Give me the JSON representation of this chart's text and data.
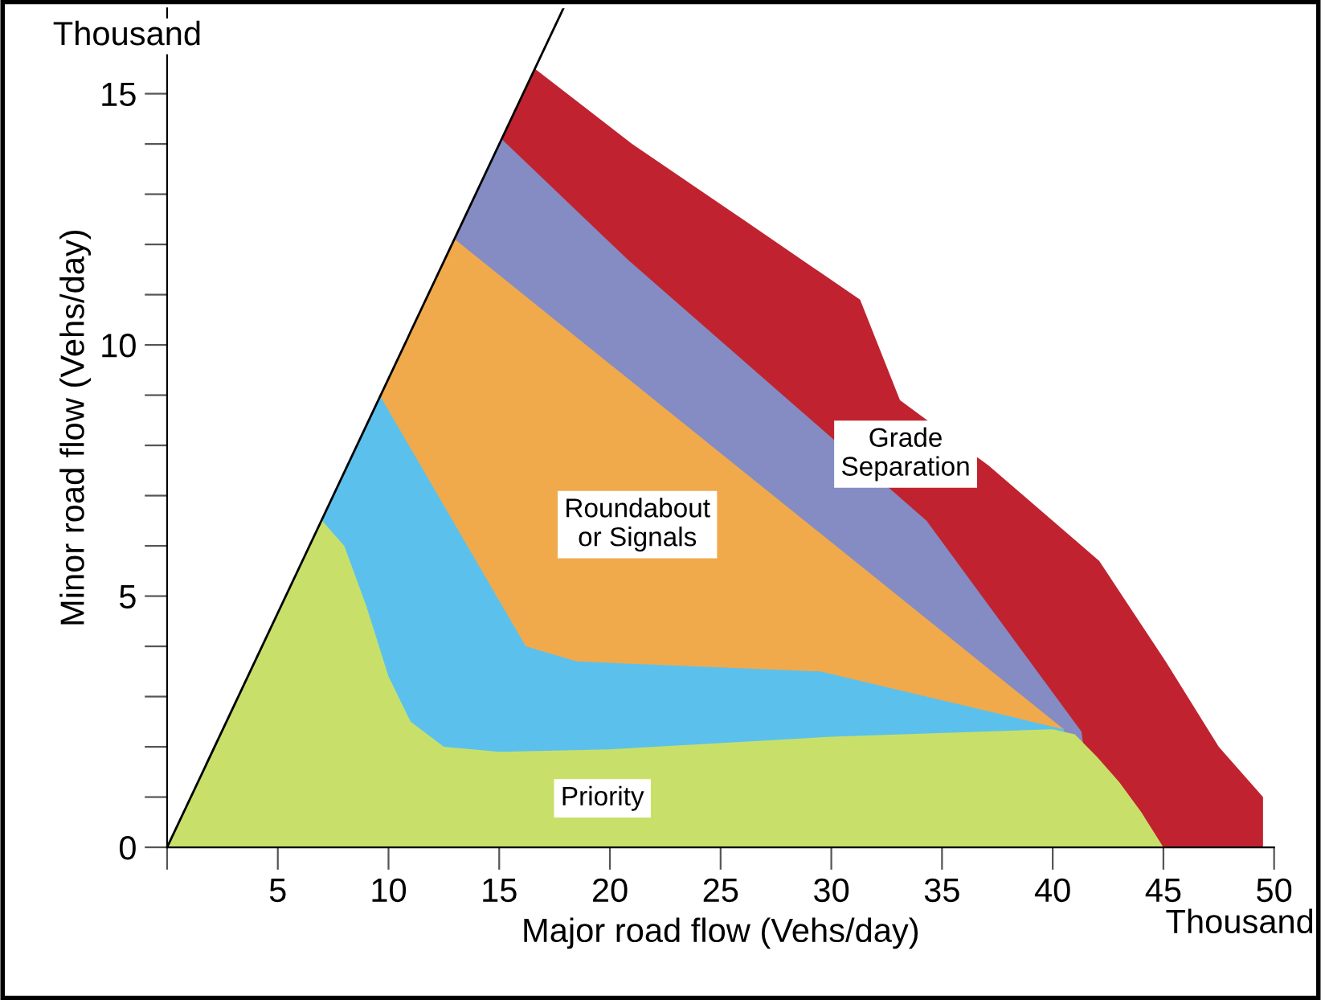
{
  "chart_data": {
    "type": "area",
    "xlabel": "Major road flow (Vehs/day)",
    "ylabel": "Minor road flow (Vehs/day)",
    "xlim": [
      0,
      50
    ],
    "ylim": [
      0,
      16.7
    ],
    "xticks": [
      {
        "value": 0,
        "label": null
      },
      5,
      10,
      15,
      20,
      25,
      30,
      35,
      40,
      45,
      50
    ],
    "yticks": [
      0,
      {
        "value": 1,
        "label": null
      },
      {
        "value": 2,
        "label": null
      },
      {
        "value": 3,
        "label": null
      },
      {
        "value": 4,
        "label": null
      },
      5,
      {
        "value": 6,
        "label": null
      },
      {
        "value": 7,
        "label": null
      },
      {
        "value": 8,
        "label": null
      },
      {
        "value": 9,
        "label": null
      },
      10,
      {
        "value": 11,
        "label": null
      },
      {
        "value": 12,
        "label": null
      },
      {
        "value": 13,
        "label": null
      },
      {
        "value": 14,
        "label": null
      },
      15
    ],
    "grid": false,
    "legend": false,
    "series": [
      {
        "name": "Grade\nSeparation",
        "color": "#c0232f",
        "x": [
          0,
          16.6,
          21,
          26,
          31.3,
          33.1,
          37.1,
          42.1,
          45.1,
          47.5,
          49.5
        ],
        "values": [
          0,
          15.5,
          14.0,
          12.5,
          10.9,
          8.9,
          7.6,
          5.7,
          3.7,
          2.0,
          1.0
        ]
      },
      {
        "color": "#848cc3",
        "x": [
          0,
          15.1,
          20.8,
          34.3,
          41.3,
          42
        ],
        "values": [
          0,
          14.1,
          11.7,
          6.5,
          2.3,
          0
        ]
      },
      {
        "name": "Roundabout\nor Signals",
        "color": "#f0aa4c",
        "x": [
          0,
          13,
          40.5,
          41
        ],
        "values": [
          0,
          12.1,
          2.35,
          0
        ]
      },
      {
        "color": "#5bc1ec",
        "x": [
          0,
          9.6,
          16.2,
          18.5,
          29.5,
          40.5,
          41
        ],
        "values": [
          0,
          9.0,
          4.0,
          3.7,
          3.5,
          2.35,
          0
        ]
      },
      {
        "name": "Priority",
        "color": "#c8e06a",
        "x": [
          0,
          7,
          8,
          9,
          10,
          11,
          12.5,
          15,
          20,
          30,
          40,
          41,
          42,
          43,
          44,
          45
        ],
        "values": [
          0,
          6.5,
          6.0,
          4.8,
          3.4,
          2.5,
          2.0,
          1.9,
          1.95,
          2.2,
          2.35,
          2.25,
          1.8,
          1.3,
          0.7,
          0
        ]
      },
      {
        "type": "line",
        "color": "#000000",
        "x": [
          0,
          17.9
        ],
        "values": [
          0,
          16.7
        ]
      }
    ],
    "annotations": [
      "Thousand",
      "Thousand"
    ]
  }
}
